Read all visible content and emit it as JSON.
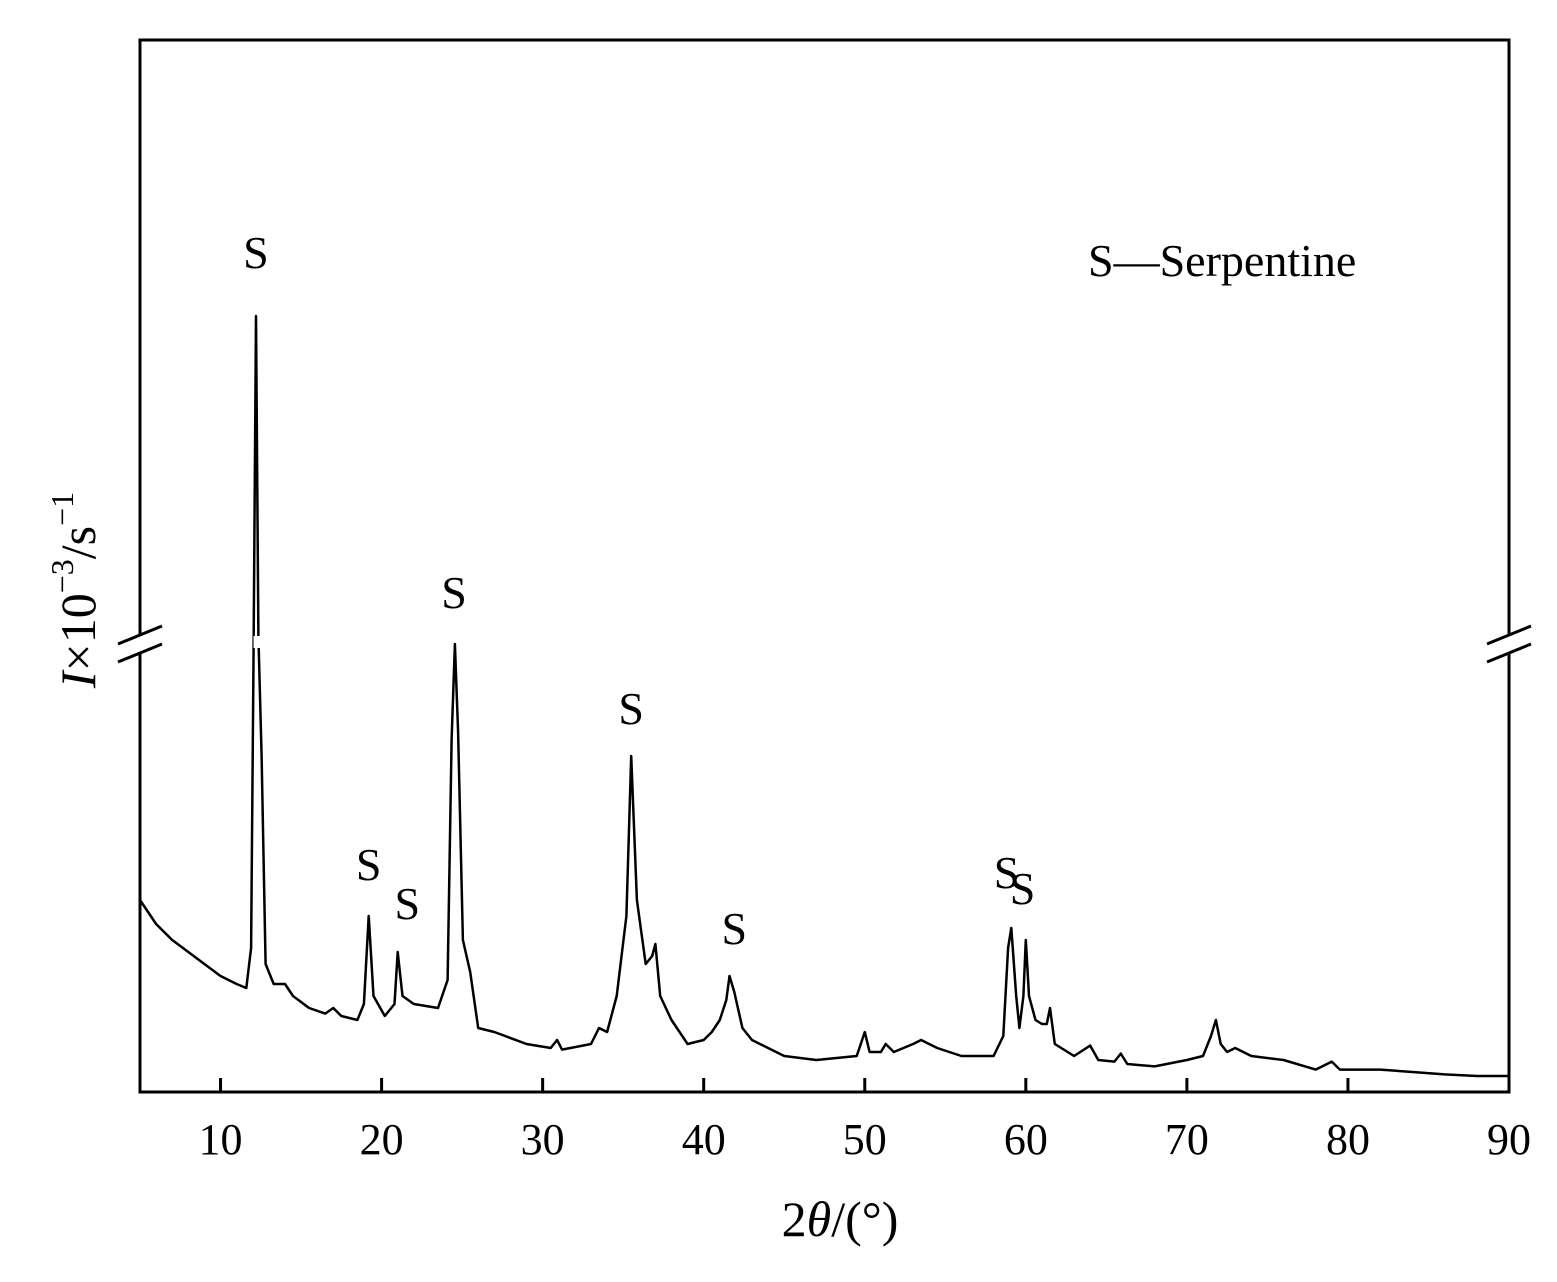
{
  "chart_data": {
    "type": "line",
    "title": "",
    "xlabel": {
      "prefix": "2",
      "symbol": "θ",
      "suffix": "/(°)"
    },
    "ylabel": {
      "symbol": "I",
      "times": "×10",
      "exp": "−3",
      "unit": "/s",
      "unit_exp": "−1"
    },
    "xlim": [
      5,
      90
    ],
    "x_ticks": [
      10,
      20,
      30,
      40,
      50,
      60,
      70,
      80,
      90
    ],
    "y_ticks_shown": false,
    "axis_break": {
      "y_value": 0.54,
      "gap_y": [
        0.535,
        0.55
      ],
      "gap_x": [
        12.05,
        12.45
      ]
    },
    "legend": {
      "marker": "S",
      "dash": "—",
      "text": "Serpentine",
      "position": "top-right"
    },
    "line_color": "#000000",
    "series": [
      {
        "points": [
          [
            5,
            0.22
          ],
          [
            6,
            0.19
          ],
          [
            7,
            0.17
          ],
          [
            8,
            0.155
          ],
          [
            9,
            0.14
          ],
          [
            10,
            0.125
          ],
          [
            11,
            0.115
          ],
          [
            11.6,
            0.11
          ],
          [
            11.9,
            0.16
          ],
          [
            12.05,
            0.52
          ],
          [
            12.2,
            0.95
          ],
          [
            12.35,
            0.55
          ],
          [
            12.55,
            0.4
          ],
          [
            12.8,
            0.14
          ],
          [
            13.3,
            0.115
          ],
          [
            14.0,
            0.115
          ],
          [
            14.5,
            0.1
          ],
          [
            15.5,
            0.085
          ],
          [
            16.5,
            0.078
          ],
          [
            17.0,
            0.085
          ],
          [
            17.5,
            0.075
          ],
          [
            18.5,
            0.07
          ],
          [
            18.9,
            0.09
          ],
          [
            19.2,
            0.2
          ],
          [
            19.5,
            0.1
          ],
          [
            20.2,
            0.075
          ],
          [
            20.8,
            0.09
          ],
          [
            21.0,
            0.155
          ],
          [
            21.3,
            0.1
          ],
          [
            22.0,
            0.09
          ],
          [
            23.5,
            0.085
          ],
          [
            24.1,
            0.12
          ],
          [
            24.35,
            0.42
          ],
          [
            24.55,
            0.54
          ],
          [
            24.75,
            0.43
          ],
          [
            25.05,
            0.17
          ],
          [
            25.5,
            0.13
          ],
          [
            26.0,
            0.06
          ],
          [
            27.0,
            0.055
          ],
          [
            29.0,
            0.04
          ],
          [
            30.5,
            0.035
          ],
          [
            30.9,
            0.045
          ],
          [
            31.2,
            0.033
          ],
          [
            33.0,
            0.04
          ],
          [
            33.5,
            0.06
          ],
          [
            34.0,
            0.055
          ],
          [
            34.6,
            0.1
          ],
          [
            35.2,
            0.2
          ],
          [
            35.5,
            0.4
          ],
          [
            35.85,
            0.22
          ],
          [
            36.4,
            0.14
          ],
          [
            36.8,
            0.15
          ],
          [
            37.0,
            0.165
          ],
          [
            37.3,
            0.1
          ],
          [
            38.0,
            0.07
          ],
          [
            39.0,
            0.04
          ],
          [
            40.0,
            0.045
          ],
          [
            40.5,
            0.055
          ],
          [
            41.0,
            0.07
          ],
          [
            41.4,
            0.095
          ],
          [
            41.6,
            0.125
          ],
          [
            41.9,
            0.105
          ],
          [
            42.4,
            0.06
          ],
          [
            43.0,
            0.045
          ],
          [
            44.0,
            0.035
          ],
          [
            45.0,
            0.025
          ],
          [
            47.0,
            0.02
          ],
          [
            49.5,
            0.025
          ],
          [
            50.0,
            0.055
          ],
          [
            50.3,
            0.03
          ],
          [
            51.0,
            0.03
          ],
          [
            51.3,
            0.04
          ],
          [
            51.8,
            0.03
          ],
          [
            53.0,
            0.04
          ],
          [
            53.5,
            0.045
          ],
          [
            54.5,
            0.035
          ],
          [
            56.0,
            0.025
          ],
          [
            58.0,
            0.025
          ],
          [
            58.6,
            0.05
          ],
          [
            58.9,
            0.16
          ],
          [
            59.1,
            0.185
          ],
          [
            59.4,
            0.1
          ],
          [
            59.6,
            0.06
          ],
          [
            59.85,
            0.1
          ],
          [
            60.0,
            0.17
          ],
          [
            60.2,
            0.1
          ],
          [
            60.6,
            0.07
          ],
          [
            61.0,
            0.065
          ],
          [
            61.3,
            0.065
          ],
          [
            61.5,
            0.085
          ],
          [
            61.8,
            0.04
          ],
          [
            63.0,
            0.025
          ],
          [
            64.0,
            0.038
          ],
          [
            64.5,
            0.02
          ],
          [
            65.5,
            0.018
          ],
          [
            65.9,
            0.028
          ],
          [
            66.3,
            0.015
          ],
          [
            68.0,
            0.012
          ],
          [
            70.0,
            0.02
          ],
          [
            71.0,
            0.025
          ],
          [
            71.5,
            0.05
          ],
          [
            71.8,
            0.07
          ],
          [
            72.1,
            0.04
          ],
          [
            72.5,
            0.03
          ],
          [
            73.0,
            0.035
          ],
          [
            74.0,
            0.025
          ],
          [
            76.0,
            0.02
          ],
          [
            78.0,
            0.008
          ],
          [
            79.0,
            0.018
          ],
          [
            79.5,
            0.008
          ],
          [
            82.0,
            0.008
          ],
          [
            84.0,
            0.005
          ],
          [
            86.0,
            0.002
          ],
          [
            88.0,
            0.0
          ],
          [
            90.0,
            0.0
          ]
        ]
      }
    ],
    "peak_labels": [
      {
        "text": "S",
        "x": 12.2,
        "y": 1.01
      },
      {
        "text": "S",
        "x": 19.2,
        "y": 0.245
      },
      {
        "text": "S",
        "x": 21.6,
        "y": 0.196
      },
      {
        "text": "S",
        "x": 24.5,
        "y": 0.585
      },
      {
        "text": "S",
        "x": 35.5,
        "y": 0.44
      },
      {
        "text": "S",
        "x": 41.9,
        "y": 0.165
      },
      {
        "text": "S",
        "x": 58.8,
        "y": 0.235
      },
      {
        "text": "S",
        "x": 59.8,
        "y": 0.215
      }
    ]
  }
}
